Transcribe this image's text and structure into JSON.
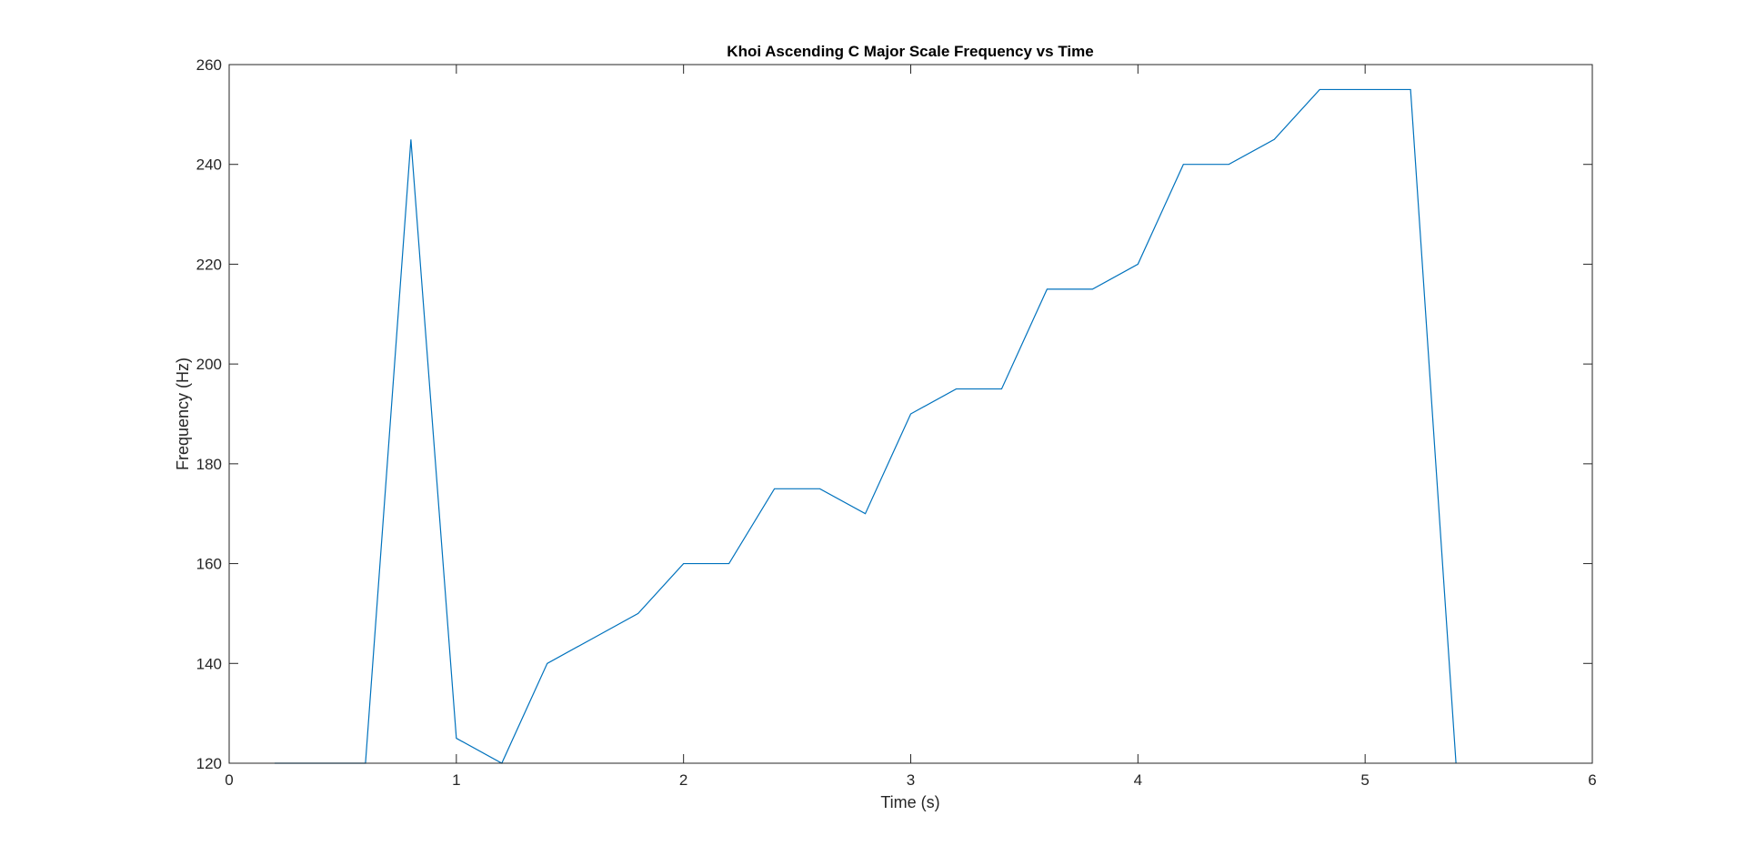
{
  "chart_data": {
    "type": "line",
    "title": "Khoi Ascending C Major Scale Frequency vs Time",
    "xlabel": "Time (s)",
    "ylabel": "Frequency (Hz)",
    "xlim": [
      0,
      6
    ],
    "ylim": [
      120,
      260
    ],
    "xticks": [
      0,
      1,
      2,
      3,
      4,
      5,
      6
    ],
    "yticks": [
      120,
      140,
      160,
      180,
      200,
      220,
      240,
      260
    ],
    "grid": false,
    "legend": "none",
    "series": [
      {
        "color": "#0072BD",
        "x": [
          0.2,
          0.4,
          0.6,
          0.8,
          1.0,
          1.2,
          1.4,
          1.6,
          1.8,
          2.0,
          2.2,
          2.4,
          2.6,
          2.8,
          3.0,
          3.2,
          3.4,
          3.6,
          3.8,
          4.0,
          4.2,
          4.4,
          4.6,
          4.8,
          5.0,
          5.2,
          5.4
        ],
        "y": [
          120,
          120,
          120,
          245,
          125,
          120,
          140,
          145,
          150,
          160,
          160,
          175,
          175,
          170,
          190,
          195,
          195,
          215,
          215,
          220,
          240,
          240,
          245,
          255,
          255,
          255,
          120
        ]
      }
    ]
  }
}
